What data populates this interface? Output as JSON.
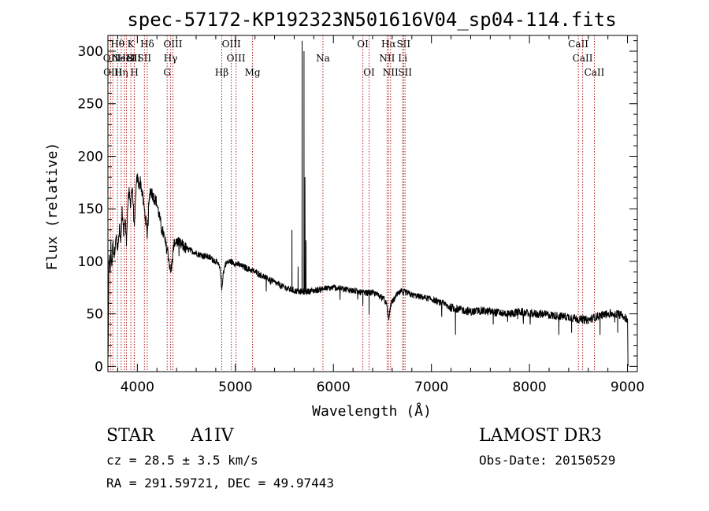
{
  "chart_data": {
    "type": "line",
    "title": "spec-57172-KP192323N501616V04_sp04-114.fits",
    "xlabel": "Wavelength (Å)",
    "ylabel": "Flux (relative)",
    "xlim": [
      3700,
      9100
    ],
    "ylim": [
      -5,
      315
    ],
    "x_ticks": [
      4000,
      5000,
      6000,
      7000,
      8000,
      9000
    ],
    "y_ticks": [
      0,
      50,
      100,
      150,
      200,
      250,
      300
    ],
    "x_minor_step": 200,
    "y_minor_step": 10,
    "colors": {
      "spectrum": "#000000",
      "line_marker": "#b22222"
    },
    "spectrum_anchors": [
      [
        3700,
        5
      ],
      [
        3705,
        40
      ],
      [
        3710,
        95
      ],
      [
        3715,
        110
      ],
      [
        3722,
        85
      ],
      [
        3730,
        115
      ],
      [
        3740,
        95
      ],
      [
        3750,
        118
      ],
      [
        3765,
        105
      ],
      [
        3780,
        125
      ],
      [
        3800,
        110
      ],
      [
        3820,
        135
      ],
      [
        3830,
        120
      ],
      [
        3845,
        148
      ],
      [
        3860,
        128
      ],
      [
        3875,
        140
      ],
      [
        3889,
        120
      ],
      [
        3900,
        150
      ],
      [
        3915,
        165
      ],
      [
        3930,
        155
      ],
      [
        3945,
        170
      ],
      [
        3955,
        160
      ],
      [
        3970,
        128
      ],
      [
        3985,
        168
      ],
      [
        4000,
        180
      ],
      [
        4015,
        172
      ],
      [
        4030,
        176
      ],
      [
        4050,
        165
      ],
      [
        4070,
        150
      ],
      [
        4085,
        140
      ],
      [
        4101,
        125
      ],
      [
        4115,
        150
      ],
      [
        4130,
        168
      ],
      [
        4150,
        165
      ],
      [
        4170,
        160
      ],
      [
        4190,
        158
      ],
      [
        4210,
        150
      ],
      [
        4230,
        140
      ],
      [
        4250,
        130
      ],
      [
        4270,
        125
      ],
      [
        4290,
        115
      ],
      [
        4310,
        110
      ],
      [
        4325,
        100
      ],
      [
        4340,
        88
      ],
      [
        4355,
        100
      ],
      [
        4375,
        118
      ],
      [
        4395,
        120
      ],
      [
        4420,
        117
      ],
      [
        4460,
        115
      ],
      [
        4500,
        112
      ],
      [
        4550,
        110
      ],
      [
        4600,
        108
      ],
      [
        4650,
        106
      ],
      [
        4700,
        105
      ],
      [
        4750,
        103
      ],
      [
        4800,
        100
      ],
      [
        4830,
        96
      ],
      [
        4850,
        90
      ],
      [
        4861,
        72
      ],
      [
        4875,
        88
      ],
      [
        4900,
        98
      ],
      [
        4950,
        100
      ],
      [
        5000,
        98
      ],
      [
        5100,
        94
      ],
      [
        5200,
        90
      ],
      [
        5300,
        85
      ],
      [
        5400,
        80
      ],
      [
        5500,
        75
      ],
      [
        5600,
        72
      ],
      [
        5700,
        71
      ],
      [
        5800,
        72
      ],
      [
        5900,
        74
      ],
      [
        6000,
        75
      ],
      [
        6100,
        74
      ],
      [
        6200,
        72
      ],
      [
        6300,
        70
      ],
      [
        6400,
        70
      ],
      [
        6500,
        66
      ],
      [
        6540,
        60
      ],
      [
        6563,
        45
      ],
      [
        6590,
        60
      ],
      [
        6650,
        68
      ],
      [
        6700,
        72
      ],
      [
        6800,
        68
      ],
      [
        6900,
        66
      ],
      [
        7000,
        64
      ],
      [
        7100,
        60
      ],
      [
        7200,
        56
      ],
      [
        7300,
        54
      ],
      [
        7400,
        52
      ],
      [
        7500,
        53
      ],
      [
        7600,
        52
      ],
      [
        7700,
        51
      ],
      [
        7800,
        50
      ],
      [
        7900,
        52
      ],
      [
        8000,
        50
      ],
      [
        8100,
        50
      ],
      [
        8200,
        49
      ],
      [
        8300,
        48
      ],
      [
        8400,
        47
      ],
      [
        8500,
        45
      ],
      [
        8600,
        44
      ],
      [
        8700,
        48
      ],
      [
        8800,
        50
      ],
      [
        8900,
        50
      ],
      [
        8960,
        48
      ],
      [
        9000,
        45
      ],
      [
        9005,
        0
      ]
    ],
    "spikes": [
      [
        5577,
        130,
        74
      ],
      [
        5681,
        310,
        70
      ],
      [
        5700,
        300,
        71
      ],
      [
        5710,
        180,
        71
      ],
      [
        5720,
        120,
        71
      ],
      [
        5640,
        95,
        72
      ],
      [
        6300,
        58,
        70
      ],
      [
        6364,
        50,
        70
      ],
      [
        7245,
        30,
        55
      ],
      [
        7630,
        40,
        52
      ],
      [
        7880,
        45,
        51
      ],
      [
        8300,
        30,
        48
      ],
      [
        8430,
        32,
        47
      ],
      [
        8720,
        30,
        48
      ],
      [
        8900,
        32,
        50
      ]
    ],
    "emission_lines": [
      {
        "wavelength": 3727,
        "row": 1,
        "label": "OII"
      },
      {
        "wavelength": 3750,
        "row": 2,
        "label": "OIII"
      },
      {
        "wavelength": 3798,
        "row": 0,
        "label": "Hθ"
      },
      {
        "wavelength": 3835,
        "row": 2,
        "label": "Hη"
      },
      {
        "wavelength": 3869,
        "row": 1,
        "label": "NeIII"
      },
      {
        "wavelength": 3889,
        "row": 1,
        "label": "HeI"
      },
      {
        "wavelength": 3934,
        "row": 0,
        "label": "K"
      },
      {
        "wavelength": 3968,
        "row": 1,
        "label": "SII"
      },
      {
        "wavelength": 3970,
        "row": 2,
        "label": "H"
      },
      {
        "wavelength": 4101,
        "row": 0,
        "label": "Hδ"
      },
      {
        "wavelength": 4072,
        "row": 1,
        "label": "SII"
      },
      {
        "wavelength": 4304,
        "row": 2,
        "label": "G"
      },
      {
        "wavelength": 4340,
        "row": 1,
        "label": "Hγ"
      },
      {
        "wavelength": 4363,
        "row": 0,
        "label": "OIII"
      },
      {
        "wavelength": 4861,
        "row": 2,
        "label": "Hβ"
      },
      {
        "wavelength": 4959,
        "row": 0,
        "label": "OIII"
      },
      {
        "wavelength": 5007,
        "row": 1,
        "label": "OIII"
      },
      {
        "wavelength": 5175,
        "row": 2,
        "label": "Mg"
      },
      {
        "wavelength": 5893,
        "row": 1,
        "label": "Na"
      },
      {
        "wavelength": 6300,
        "row": 0,
        "label": "OI"
      },
      {
        "wavelength": 6364,
        "row": 2,
        "label": "OI"
      },
      {
        "wavelength": 6548,
        "row": 1,
        "label": "NII"
      },
      {
        "wavelength": 6563,
        "row": 0,
        "label": "Hα"
      },
      {
        "wavelength": 6583,
        "row": 2,
        "label": "NII"
      },
      {
        "wavelength": 6707,
        "row": 1,
        "label": "Li"
      },
      {
        "wavelength": 6716,
        "row": 0,
        "label": "SII"
      },
      {
        "wavelength": 6731,
        "row": 2,
        "label": "SII"
      },
      {
        "wavelength": 8498,
        "row": 0,
        "label": "CaII"
      },
      {
        "wavelength": 8542,
        "row": 1,
        "label": "CaII"
      },
      {
        "wavelength": 8662,
        "row": 2,
        "label": "CaII"
      }
    ]
  },
  "info": {
    "class": "STAR",
    "subclass": "A1IV",
    "survey": "LAMOST DR3",
    "cz": "cz = 28.5 ± 3.5 km/s",
    "obs_date": "Obs-Date: 20150529",
    "coords": "RA = 291.59721, DEC =  49.97443"
  }
}
